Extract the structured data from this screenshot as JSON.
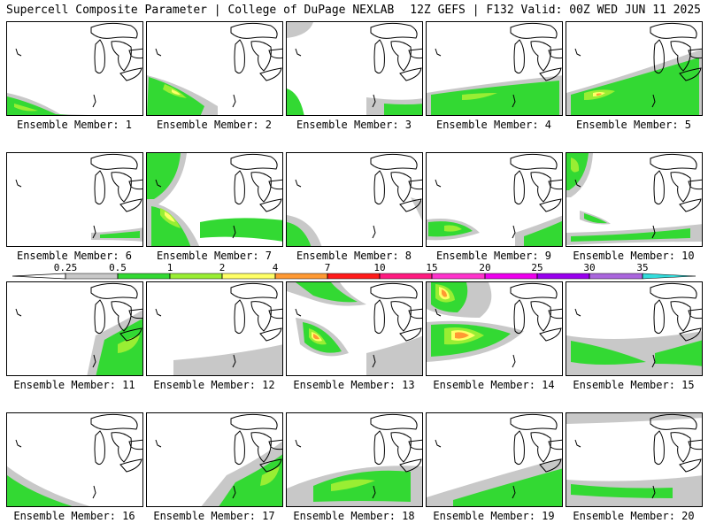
{
  "header": {
    "left": "Supercell Composite Parameter | College of DuPage NEXLAB",
    "right": "12Z GEFS | F132 Valid: 00Z WED JUN 11 2025"
  },
  "member_label_prefix": "Ensemble Member: ",
  "members": [
    {
      "id": "1",
      "label": "Ensemble Member: 1"
    },
    {
      "id": "2",
      "label": "Ensemble Member: 2"
    },
    {
      "id": "3",
      "label": "Ensemble Member: 3"
    },
    {
      "id": "4",
      "label": "Ensemble Member: 4"
    },
    {
      "id": "5",
      "label": "Ensemble Member: 5"
    },
    {
      "id": "6",
      "label": "Ensemble Member: 6"
    },
    {
      "id": "7",
      "label": "Ensemble Member: 7"
    },
    {
      "id": "8",
      "label": "Ensemble Member: 8"
    },
    {
      "id": "9",
      "label": "Ensemble Member: 9"
    },
    {
      "id": "10",
      "label": "Ensemble Member: 10"
    },
    {
      "id": "11",
      "label": "Ensemble Member: 11"
    },
    {
      "id": "12",
      "label": "Ensemble Member: 12"
    },
    {
      "id": "13",
      "label": "Ensemble Member: 13"
    },
    {
      "id": "14",
      "label": "Ensemble Member: 14"
    },
    {
      "id": "15",
      "label": "Ensemble Member: 15"
    },
    {
      "id": "16",
      "label": "Ensemble Member: 16"
    },
    {
      "id": "17",
      "label": "Ensemble Member: 17"
    },
    {
      "id": "18",
      "label": "Ensemble Member: 18"
    },
    {
      "id": "19",
      "label": "Ensemble Member: 19"
    },
    {
      "id": "20",
      "label": "Ensemble Member: 20"
    }
  ],
  "colorbar": {
    "ticks": [
      "0.25",
      "0.5",
      "1",
      "2",
      "4",
      "7",
      "10",
      "15",
      "20",
      "25",
      "30",
      "35"
    ],
    "colors": [
      "#c8c8c8",
      "#33d933",
      "#99ee33",
      "#ffff66",
      "#ff9933",
      "#ff1a1a",
      "#ff1a80",
      "#ff33cc",
      "#ee00ee",
      "#9900ee",
      "#aa66dd",
      "#33dddd"
    ]
  }
}
